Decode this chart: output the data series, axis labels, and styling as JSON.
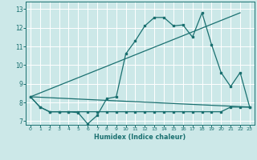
{
  "xlabel": "Humidex (Indice chaleur)",
  "xlim": [
    -0.5,
    23.5
  ],
  "ylim": [
    6.8,
    13.4
  ],
  "yticks": [
    7,
    8,
    9,
    10,
    11,
    12,
    13
  ],
  "xticks": [
    0,
    1,
    2,
    3,
    4,
    5,
    6,
    7,
    8,
    9,
    10,
    11,
    12,
    13,
    14,
    15,
    16,
    17,
    18,
    19,
    20,
    21,
    22,
    23
  ],
  "bg_color": "#cce8e8",
  "line_color": "#1a7070",
  "grid_color": "#ffffff",
  "line1_x": [
    0,
    1,
    2,
    3,
    4,
    5,
    6,
    7,
    8,
    9,
    10,
    11,
    12,
    13,
    14,
    15,
    16,
    17,
    18,
    19,
    20,
    21,
    22,
    23
  ],
  "line1_y": [
    8.3,
    7.75,
    7.5,
    7.5,
    7.5,
    7.45,
    6.85,
    7.3,
    8.2,
    8.3,
    10.6,
    11.3,
    12.1,
    12.55,
    12.55,
    12.1,
    12.15,
    11.5,
    12.8,
    11.1,
    9.6,
    8.85,
    9.6,
    7.75
  ],
  "line2_x": [
    0,
    1,
    2,
    3,
    4,
    5,
    6,
    7,
    8,
    9,
    10,
    11,
    12,
    13,
    14,
    15,
    16,
    17,
    18,
    19,
    20,
    21,
    22,
    23
  ],
  "line2_y": [
    8.3,
    7.75,
    7.5,
    7.5,
    7.5,
    7.5,
    7.5,
    7.5,
    7.5,
    7.5,
    7.5,
    7.5,
    7.5,
    7.5,
    7.5,
    7.5,
    7.5,
    7.5,
    7.5,
    7.5,
    7.5,
    7.75,
    7.75,
    7.75
  ],
  "line3_x": [
    0,
    22
  ],
  "line3_y": [
    8.3,
    12.8
  ],
  "line4_x": [
    0,
    23
  ],
  "line4_y": [
    8.3,
    7.75
  ]
}
